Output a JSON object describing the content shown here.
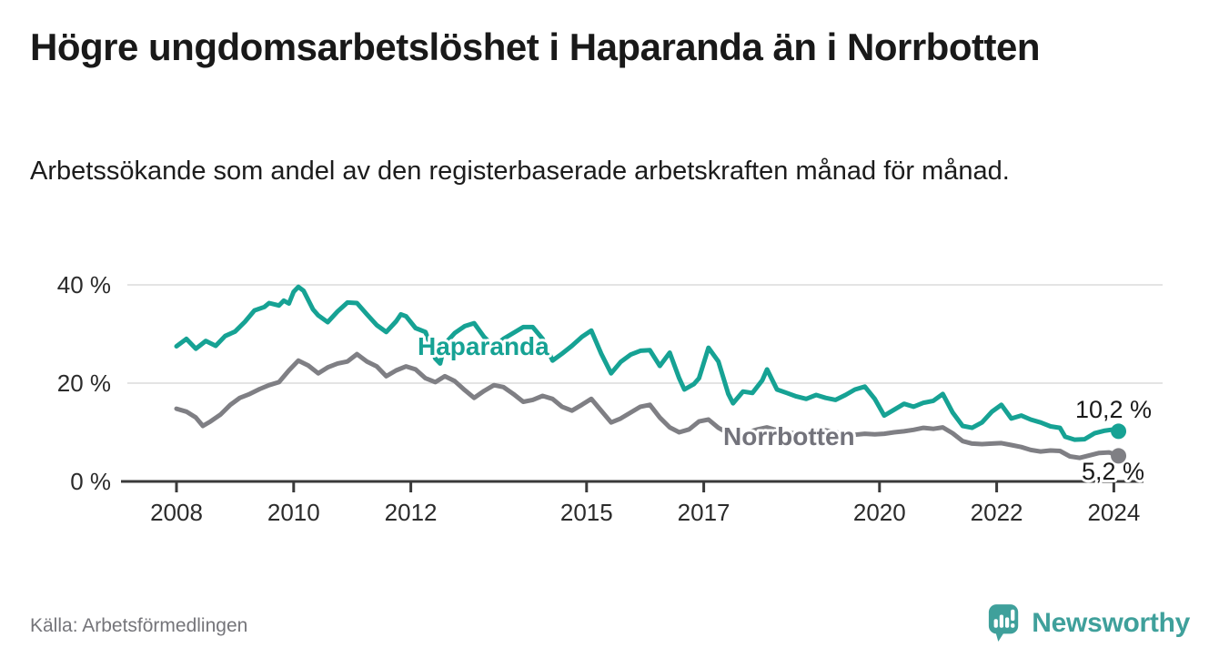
{
  "page": {
    "title": "Högre ungdomsarbetslöshet i Haparanda än i Norrbotten",
    "subtitle": "Arbetssökande som andel av den registerbaserade arbetskraften månad för månad.",
    "source": "Källa: Arbetsförmedlingen",
    "brand": {
      "name": "Newsworthy",
      "color": "#3FA09B",
      "icon": "bar-chart-speech-bubble-icon"
    }
  },
  "chart_data": {
    "type": "line",
    "title": "Högre ungdomsarbetslöshet i Haparanda än i Norrbotten",
    "subtitle": "Arbetssökande som andel av den registerbaserade arbetskraften månad för månad.",
    "source": "Källa: Arbetsförmedlingen",
    "unit": "%",
    "grid": "horizontal",
    "legend_position": "inline-labels",
    "xlim": [
      2007.2,
      2024.8
    ],
    "ylim": [
      0,
      44
    ],
    "x_ticks": [
      {
        "value": 2008,
        "label": "2008"
      },
      {
        "value": 2010,
        "label": "2010"
      },
      {
        "value": 2012,
        "label": "2012"
      },
      {
        "value": 2015,
        "label": "2015"
      },
      {
        "value": 2017,
        "label": "2017"
      },
      {
        "value": 2020,
        "label": "2020"
      },
      {
        "value": 2022,
        "label": "2022"
      },
      {
        "value": 2024,
        "label": "2024"
      }
    ],
    "y_ticks": [
      {
        "value": 0,
        "label": "0 %"
      },
      {
        "value": 20,
        "label": "20 %"
      },
      {
        "value": 40,
        "label": "40 %"
      }
    ],
    "series": [
      {
        "name": "Norrbotten",
        "color": "#7F7F84",
        "label_color": "#73737B",
        "end_value": 5.2,
        "end_label": "5,2 %",
        "points": [
          [
            2008.0,
            14.8
          ],
          [
            2008.17,
            14.2
          ],
          [
            2008.33,
            13.0
          ],
          [
            2008.45,
            11.3
          ],
          [
            2008.58,
            12.2
          ],
          [
            2008.75,
            13.6
          ],
          [
            2008.92,
            15.6
          ],
          [
            2009.08,
            17.0
          ],
          [
            2009.25,
            17.8
          ],
          [
            2009.42,
            18.8
          ],
          [
            2009.58,
            19.6
          ],
          [
            2009.75,
            20.2
          ],
          [
            2009.92,
            22.6
          ],
          [
            2010.08,
            24.6
          ],
          [
            2010.25,
            23.6
          ],
          [
            2010.42,
            22.0
          ],
          [
            2010.58,
            23.2
          ],
          [
            2010.75,
            24.0
          ],
          [
            2010.92,
            24.4
          ],
          [
            2011.08,
            25.9
          ],
          [
            2011.25,
            24.4
          ],
          [
            2011.42,
            23.4
          ],
          [
            2011.58,
            21.4
          ],
          [
            2011.75,
            22.6
          ],
          [
            2011.92,
            23.4
          ],
          [
            2012.08,
            22.8
          ],
          [
            2012.25,
            21.0
          ],
          [
            2012.42,
            20.2
          ],
          [
            2012.58,
            21.4
          ],
          [
            2012.75,
            20.4
          ],
          [
            2012.92,
            18.6
          ],
          [
            2013.08,
            17.0
          ],
          [
            2013.25,
            18.4
          ],
          [
            2013.42,
            19.6
          ],
          [
            2013.58,
            19.2
          ],
          [
            2013.75,
            17.8
          ],
          [
            2013.92,
            16.2
          ],
          [
            2014.08,
            16.6
          ],
          [
            2014.25,
            17.4
          ],
          [
            2014.42,
            16.8
          ],
          [
            2014.58,
            15.2
          ],
          [
            2014.75,
            14.4
          ],
          [
            2014.92,
            15.6
          ],
          [
            2015.08,
            16.8
          ],
          [
            2015.25,
            14.4
          ],
          [
            2015.42,
            12.0
          ],
          [
            2015.58,
            12.8
          ],
          [
            2015.75,
            14.0
          ],
          [
            2015.92,
            15.2
          ],
          [
            2016.08,
            15.6
          ],
          [
            2016.25,
            13.0
          ],
          [
            2016.42,
            11.0
          ],
          [
            2016.58,
            10.0
          ],
          [
            2016.75,
            10.6
          ],
          [
            2016.92,
            12.2
          ],
          [
            2017.08,
            12.6
          ],
          [
            2017.25,
            10.9
          ],
          [
            2017.42,
            9.8
          ],
          [
            2017.58,
            9.4
          ],
          [
            2017.75,
            10.0
          ],
          [
            2017.92,
            10.6
          ],
          [
            2018.08,
            11.0
          ],
          [
            2018.25,
            10.4
          ],
          [
            2018.42,
            10.0
          ],
          [
            2018.58,
            9.7
          ],
          [
            2018.75,
            9.9
          ],
          [
            2018.92,
            10.2
          ],
          [
            2019.08,
            10.4
          ],
          [
            2019.25,
            10.0
          ],
          [
            2019.42,
            9.7
          ],
          [
            2019.58,
            9.5
          ],
          [
            2019.75,
            9.7
          ],
          [
            2019.92,
            9.6
          ],
          [
            2020.08,
            9.7
          ],
          [
            2020.25,
            10.0
          ],
          [
            2020.42,
            10.2
          ],
          [
            2020.58,
            10.5
          ],
          [
            2020.75,
            10.9
          ],
          [
            2020.92,
            10.7
          ],
          [
            2021.08,
            11.0
          ],
          [
            2021.25,
            9.8
          ],
          [
            2021.42,
            8.2
          ],
          [
            2021.58,
            7.7
          ],
          [
            2021.75,
            7.6
          ],
          [
            2021.92,
            7.7
          ],
          [
            2022.08,
            7.8
          ],
          [
            2022.25,
            7.4
          ],
          [
            2022.42,
            7.0
          ],
          [
            2022.58,
            6.4
          ],
          [
            2022.75,
            6.1
          ],
          [
            2022.92,
            6.3
          ],
          [
            2023.08,
            6.2
          ],
          [
            2023.25,
            5.1
          ],
          [
            2023.42,
            4.8
          ],
          [
            2023.58,
            5.3
          ],
          [
            2023.75,
            5.8
          ],
          [
            2023.92,
            5.9
          ],
          [
            2024.0,
            5.6
          ],
          [
            2024.08,
            5.2
          ]
        ]
      },
      {
        "name": "Haparanda",
        "color": "#16A294",
        "label_color": "#16A294",
        "end_value": 10.2,
        "end_label": "10,2 %",
        "points": [
          [
            2008.0,
            27.5
          ],
          [
            2008.17,
            29.0
          ],
          [
            2008.33,
            27.0
          ],
          [
            2008.5,
            28.6
          ],
          [
            2008.67,
            27.6
          ],
          [
            2008.83,
            29.6
          ],
          [
            2009.0,
            30.5
          ],
          [
            2009.17,
            32.5
          ],
          [
            2009.33,
            34.8
          ],
          [
            2009.5,
            35.5
          ],
          [
            2009.58,
            36.3
          ],
          [
            2009.75,
            35.8
          ],
          [
            2009.83,
            36.8
          ],
          [
            2009.92,
            36.2
          ],
          [
            2010.0,
            38.6
          ],
          [
            2010.08,
            39.6
          ],
          [
            2010.17,
            38.8
          ],
          [
            2010.33,
            35.0
          ],
          [
            2010.42,
            33.8
          ],
          [
            2010.58,
            32.4
          ],
          [
            2010.75,
            34.6
          ],
          [
            2010.92,
            36.4
          ],
          [
            2011.08,
            36.3
          ],
          [
            2011.25,
            34.0
          ],
          [
            2011.42,
            31.8
          ],
          [
            2011.58,
            30.4
          ],
          [
            2011.75,
            32.6
          ],
          [
            2011.83,
            34.0
          ],
          [
            2011.92,
            33.6
          ],
          [
            2012.08,
            31.2
          ],
          [
            2012.25,
            30.4
          ],
          [
            2012.42,
            25.0
          ],
          [
            2012.5,
            24.0
          ],
          [
            2012.58,
            28.0
          ],
          [
            2012.75,
            30.2
          ],
          [
            2012.92,
            31.6
          ],
          [
            2013.08,
            32.2
          ],
          [
            2013.25,
            29.4
          ],
          [
            2013.42,
            27.4
          ],
          [
            2013.58,
            29.0
          ],
          [
            2013.75,
            30.2
          ],
          [
            2013.92,
            31.4
          ],
          [
            2014.08,
            31.4
          ],
          [
            2014.25,
            29.0
          ],
          [
            2014.42,
            24.6
          ],
          [
            2014.58,
            26.0
          ],
          [
            2014.75,
            27.6
          ],
          [
            2014.92,
            29.4
          ],
          [
            2015.08,
            30.7
          ],
          [
            2015.25,
            26.0
          ],
          [
            2015.42,
            22.0
          ],
          [
            2015.58,
            24.3
          ],
          [
            2015.75,
            25.8
          ],
          [
            2015.92,
            26.6
          ],
          [
            2016.08,
            26.7
          ],
          [
            2016.25,
            23.5
          ],
          [
            2016.42,
            26.2
          ],
          [
            2016.58,
            21.0
          ],
          [
            2016.67,
            18.7
          ],
          [
            2016.83,
            19.8
          ],
          [
            2016.92,
            21.0
          ],
          [
            2017.08,
            27.2
          ],
          [
            2017.25,
            24.4
          ],
          [
            2017.42,
            17.8
          ],
          [
            2017.5,
            15.9
          ],
          [
            2017.67,
            18.3
          ],
          [
            2017.83,
            18.0
          ],
          [
            2018.0,
            20.6
          ],
          [
            2018.08,
            22.8
          ],
          [
            2018.25,
            18.7
          ],
          [
            2018.42,
            18.0
          ],
          [
            2018.58,
            17.3
          ],
          [
            2018.75,
            16.8
          ],
          [
            2018.92,
            17.6
          ],
          [
            2019.08,
            17.0
          ],
          [
            2019.25,
            16.6
          ],
          [
            2019.42,
            17.6
          ],
          [
            2019.58,
            18.7
          ],
          [
            2019.75,
            19.3
          ],
          [
            2019.92,
            16.8
          ],
          [
            2020.08,
            13.4
          ],
          [
            2020.25,
            14.6
          ],
          [
            2020.42,
            15.8
          ],
          [
            2020.58,
            15.2
          ],
          [
            2020.75,
            16.0
          ],
          [
            2020.92,
            16.4
          ],
          [
            2021.08,
            17.8
          ],
          [
            2021.25,
            14.0
          ],
          [
            2021.42,
            11.3
          ],
          [
            2021.58,
            10.9
          ],
          [
            2021.75,
            12.0
          ],
          [
            2021.92,
            14.2
          ],
          [
            2022.08,
            15.6
          ],
          [
            2022.25,
            12.8
          ],
          [
            2022.42,
            13.4
          ],
          [
            2022.58,
            12.6
          ],
          [
            2022.75,
            12.0
          ],
          [
            2022.92,
            11.2
          ],
          [
            2023.08,
            10.9
          ],
          [
            2023.17,
            9.1
          ],
          [
            2023.33,
            8.5
          ],
          [
            2023.5,
            8.6
          ],
          [
            2023.67,
            9.8
          ],
          [
            2023.83,
            10.3
          ],
          [
            2024.0,
            10.6
          ],
          [
            2024.08,
            10.2
          ]
        ]
      }
    ]
  }
}
